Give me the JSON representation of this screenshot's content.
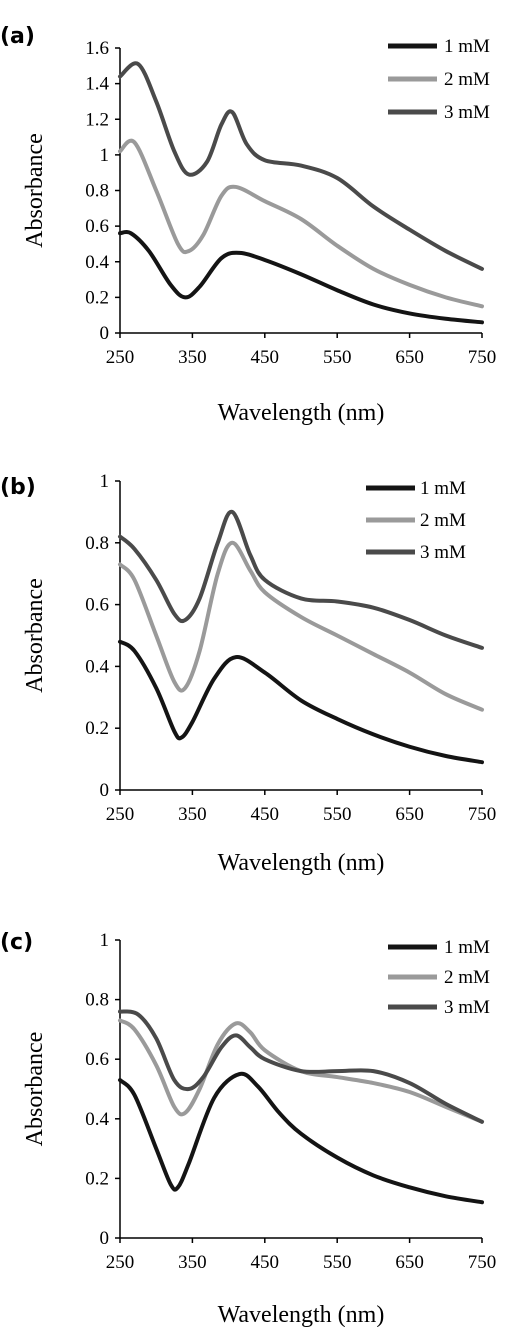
{
  "chart_data": [
    {
      "type": "line",
      "panel_label": "(a)",
      "xlabel": "Wavelength (nm)",
      "ylabel": "Absorbance",
      "xlim": [
        250,
        750
      ],
      "ylim": [
        0,
        1.6
      ],
      "xticks": [
        250,
        350,
        450,
        550,
        650,
        750
      ],
      "yticks": [
        0,
        0.2,
        0.4,
        0.6,
        0.8,
        1,
        1.2,
        1.4,
        1.6
      ],
      "ytick_labels": [
        "0",
        "0.2",
        "0.4",
        "0.6",
        "0.8",
        "1",
        "1.2",
        "1.4",
        "1.6"
      ],
      "grid": false,
      "legend_position": "top-right",
      "series": [
        {
          "name": "1 mM",
          "color": "#141414",
          "x": [
            250,
            265,
            290,
            320,
            340,
            360,
            390,
            415,
            450,
            500,
            550,
            600,
            650,
            700,
            750
          ],
          "y": [
            0.56,
            0.56,
            0.46,
            0.27,
            0.2,
            0.26,
            0.42,
            0.45,
            0.41,
            0.33,
            0.24,
            0.16,
            0.11,
            0.08,
            0.06
          ]
        },
        {
          "name": "2 mM",
          "color": "#9a9a9a",
          "x": [
            250,
            270,
            300,
            330,
            345,
            365,
            390,
            410,
            450,
            500,
            550,
            600,
            650,
            700,
            750
          ],
          "y": [
            1.02,
            1.07,
            0.8,
            0.5,
            0.46,
            0.55,
            0.77,
            0.82,
            0.74,
            0.64,
            0.49,
            0.36,
            0.27,
            0.2,
            0.15
          ]
        },
        {
          "name": "3 mM",
          "color": "#4a4a4a",
          "x": [
            250,
            275,
            300,
            325,
            345,
            370,
            390,
            405,
            425,
            450,
            500,
            550,
            600,
            650,
            700,
            750
          ],
          "y": [
            1.44,
            1.51,
            1.3,
            1.02,
            0.89,
            0.96,
            1.17,
            1.24,
            1.06,
            0.97,
            0.94,
            0.87,
            0.71,
            0.58,
            0.46,
            0.36
          ]
        }
      ]
    },
    {
      "type": "line",
      "panel_label": "(b)",
      "xlabel": "Wavelength (nm)",
      "ylabel": "Absorbance",
      "xlim": [
        250,
        750
      ],
      "ylim": [
        0,
        1
      ],
      "xticks": [
        250,
        350,
        450,
        550,
        650,
        750
      ],
      "yticks": [
        0,
        0.2,
        0.4,
        0.6,
        0.8,
        1
      ],
      "ytick_labels": [
        "0",
        "0.2",
        "0.4",
        "0.6",
        "0.8",
        "1"
      ],
      "grid": false,
      "legend_position": "top-right",
      "series": [
        {
          "name": "1 mM",
          "color": "#141414",
          "x": [
            250,
            270,
            300,
            325,
            335,
            350,
            380,
            410,
            450,
            500,
            550,
            600,
            650,
            700,
            750
          ],
          "y": [
            0.48,
            0.45,
            0.33,
            0.19,
            0.17,
            0.22,
            0.36,
            0.43,
            0.38,
            0.29,
            0.23,
            0.18,
            0.14,
            0.11,
            0.09
          ]
        },
        {
          "name": "2 mM",
          "color": "#9a9a9a",
          "x": [
            250,
            270,
            300,
            325,
            340,
            360,
            385,
            405,
            430,
            450,
            500,
            550,
            600,
            650,
            700,
            750
          ],
          "y": [
            0.73,
            0.68,
            0.5,
            0.35,
            0.33,
            0.45,
            0.7,
            0.8,
            0.71,
            0.64,
            0.56,
            0.5,
            0.44,
            0.38,
            0.31,
            0.26
          ]
        },
        {
          "name": "3 mM",
          "color": "#4a4a4a",
          "x": [
            250,
            270,
            300,
            325,
            340,
            360,
            385,
            405,
            430,
            450,
            500,
            550,
            600,
            650,
            700,
            750
          ],
          "y": [
            0.82,
            0.78,
            0.68,
            0.57,
            0.55,
            0.62,
            0.8,
            0.9,
            0.76,
            0.68,
            0.62,
            0.61,
            0.59,
            0.55,
            0.5,
            0.46
          ]
        }
      ]
    },
    {
      "type": "line",
      "panel_label": "(c)",
      "xlabel": "Wavelength (nm)",
      "ylabel": "Absorbance",
      "xlim": [
        250,
        750
      ],
      "ylim": [
        0,
        1
      ],
      "xticks": [
        250,
        350,
        450,
        550,
        650,
        750
      ],
      "yticks": [
        0,
        0.2,
        0.4,
        0.6,
        0.8,
        1
      ],
      "ytick_labels": [
        "0",
        "0.2",
        "0.4",
        "0.6",
        "0.8",
        "1"
      ],
      "grid": false,
      "legend_position": "top-right",
      "series": [
        {
          "name": "1 mM",
          "color": "#141414",
          "x": [
            250,
            270,
            300,
            320,
            330,
            345,
            380,
            415,
            440,
            470,
            500,
            550,
            600,
            650,
            700,
            750
          ],
          "y": [
            0.53,
            0.48,
            0.3,
            0.18,
            0.17,
            0.25,
            0.47,
            0.55,
            0.51,
            0.42,
            0.35,
            0.27,
            0.21,
            0.17,
            0.14,
            0.12
          ]
        },
        {
          "name": "2 mM",
          "color": "#9a9a9a",
          "x": [
            250,
            270,
            300,
            325,
            340,
            360,
            385,
            410,
            430,
            450,
            500,
            550,
            600,
            650,
            700,
            750
          ],
          "y": [
            0.73,
            0.7,
            0.58,
            0.44,
            0.42,
            0.5,
            0.65,
            0.72,
            0.69,
            0.63,
            0.56,
            0.54,
            0.52,
            0.49,
            0.44,
            0.39
          ]
        },
        {
          "name": "3 mM",
          "color": "#4a4a4a",
          "x": [
            250,
            275,
            300,
            325,
            345,
            365,
            390,
            410,
            430,
            450,
            500,
            550,
            600,
            650,
            700,
            750
          ],
          "y": [
            0.76,
            0.75,
            0.67,
            0.53,
            0.5,
            0.54,
            0.64,
            0.68,
            0.64,
            0.6,
            0.56,
            0.56,
            0.56,
            0.52,
            0.45,
            0.39
          ]
        }
      ]
    }
  ]
}
